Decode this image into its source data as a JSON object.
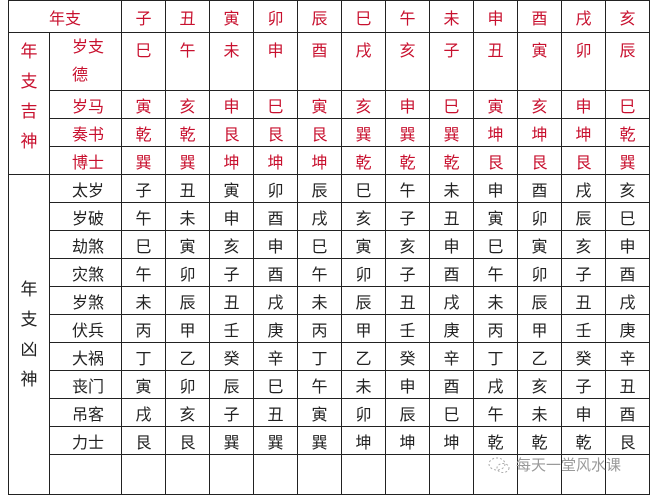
{
  "header": {
    "label": "年支",
    "branches": [
      "子",
      "丑",
      "寅",
      "卯",
      "辰",
      "巳",
      "午",
      "未",
      "申",
      "酉",
      "戌",
      "亥"
    ]
  },
  "auspicious": {
    "group_label": "年支吉神",
    "color": "#c8102e",
    "rows": [
      {
        "label": "岁支德",
        "values": [
          "巳",
          "午",
          "未",
          "申",
          "酉",
          "戌",
          "亥",
          "子",
          "丑",
          "寅",
          "卯",
          "辰"
        ]
      },
      {
        "label": "岁马",
        "values": [
          "寅",
          "亥",
          "申",
          "巳",
          "寅",
          "亥",
          "申",
          "巳",
          "寅",
          "亥",
          "申",
          "巳"
        ]
      },
      {
        "label": "奏书",
        "values": [
          "乾",
          "乾",
          "艮",
          "艮",
          "艮",
          "巽",
          "巽",
          "巽",
          "坤",
          "坤",
          "坤",
          "乾"
        ]
      },
      {
        "label": "博士",
        "values": [
          "巽",
          "巽",
          "坤",
          "坤",
          "坤",
          "乾",
          "乾",
          "乾",
          "艮",
          "艮",
          "艮",
          "巽"
        ]
      }
    ]
  },
  "inauspicious": {
    "group_label": "年支凶神",
    "rows": [
      {
        "label": "太岁",
        "values": [
          "子",
          "丑",
          "寅",
          "卯",
          "辰",
          "巳",
          "午",
          "未",
          "申",
          "酉",
          "戌",
          "亥"
        ]
      },
      {
        "label": "岁破",
        "values": [
          "午",
          "未",
          "申",
          "酉",
          "戌",
          "亥",
          "子",
          "丑",
          "寅",
          "卯",
          "辰",
          "巳"
        ]
      },
      {
        "label": "劫煞",
        "values": [
          "巳",
          "寅",
          "亥",
          "申",
          "巳",
          "寅",
          "亥",
          "申",
          "巳",
          "寅",
          "亥",
          "申"
        ]
      },
      {
        "label": "灾煞",
        "values": [
          "午",
          "卯",
          "子",
          "酉",
          "午",
          "卯",
          "子",
          "酉",
          "午",
          "卯",
          "子",
          "酉"
        ]
      },
      {
        "label": "岁煞",
        "values": [
          "未",
          "辰",
          "丑",
          "戌",
          "未",
          "辰",
          "丑",
          "戌",
          "未",
          "辰",
          "丑",
          "戌"
        ]
      },
      {
        "label": "伏兵",
        "values": [
          "丙",
          "甲",
          "壬",
          "庚",
          "丙",
          "甲",
          "壬",
          "庚",
          "丙",
          "甲",
          "壬",
          "庚"
        ]
      },
      {
        "label": "大祸",
        "values": [
          "丁",
          "乙",
          "癸",
          "辛",
          "丁",
          "乙",
          "癸",
          "辛",
          "丁",
          "乙",
          "癸",
          "辛"
        ]
      },
      {
        "label": "丧门",
        "values": [
          "寅",
          "卯",
          "辰",
          "巳",
          "午",
          "未",
          "申",
          "酉",
          "戌",
          "亥",
          "子",
          "丑"
        ]
      },
      {
        "label": "吊客",
        "values": [
          "戌",
          "亥",
          "子",
          "丑",
          "寅",
          "卯",
          "辰",
          "巳",
          "午",
          "未",
          "申",
          "酉"
        ]
      },
      {
        "label": "力士",
        "values": [
          "艮",
          "艮",
          "巽",
          "巽",
          "巽",
          "坤",
          "坤",
          "坤",
          "乾",
          "乾",
          "乾",
          "艮"
        ]
      }
    ]
  },
  "watermark": {
    "text": "每天一堂风水课",
    "icon": "wechat-icon"
  }
}
